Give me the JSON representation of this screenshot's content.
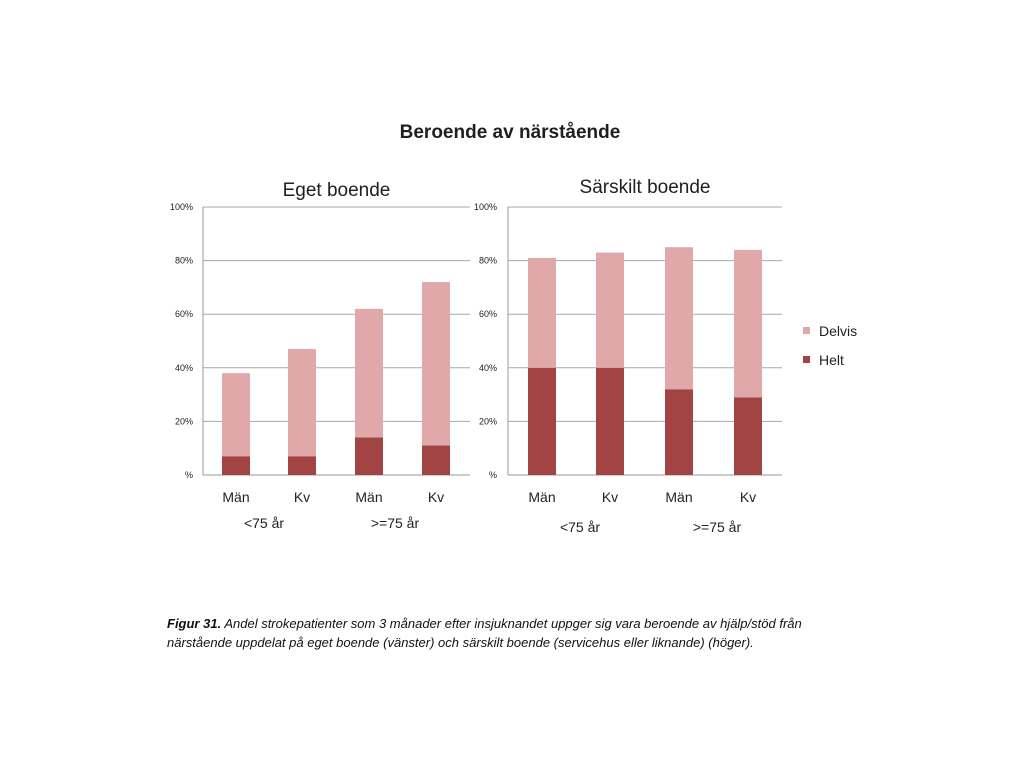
{
  "title": "Beroende av närstående",
  "legend": [
    {
      "label": "Delvis",
      "color": "#e0a8a8"
    },
    {
      "label": "Helt",
      "color": "#a34444"
    }
  ],
  "caption": {
    "label": "Figur 31.",
    "text": "Andel strokepatienter som 3 månader efter insjuknandet uppger sig vara beroende av hjälp/stöd från närstående uppdelat på eget boende (vänster) och särskilt boende (servicehus eller liknande) (höger)."
  },
  "chart_data": [
    {
      "type": "bar",
      "stacked": true,
      "title": "Eget boende",
      "categories": [
        "Män",
        "Kv",
        "Män",
        "Kv"
      ],
      "groups": [
        "<75 år",
        ">=75 år"
      ],
      "series": [
        {
          "name": "Helt",
          "values": [
            7,
            7,
            14,
            11
          ]
        },
        {
          "name": "Delvis",
          "values": [
            31,
            40,
            48,
            61
          ]
        }
      ],
      "yticks": [
        "%",
        "20%",
        "40%",
        "60%",
        "80%",
        "100%"
      ],
      "ylim": [
        0,
        100
      ],
      "grid": true
    },
    {
      "type": "bar",
      "stacked": true,
      "title": "Särskilt boende",
      "categories": [
        "Män",
        "Kv",
        "Män",
        "Kv"
      ],
      "groups": [
        "<75 år",
        ">=75 år"
      ],
      "series": [
        {
          "name": "Helt",
          "values": [
            40,
            40,
            32,
            29
          ]
        },
        {
          "name": "Delvis",
          "values": [
            41,
            43,
            53,
            55
          ]
        }
      ],
      "yticks": [
        "%",
        "20%",
        "40%",
        "60%",
        "80%",
        "100%"
      ],
      "ylim": [
        0,
        100
      ],
      "grid": true
    }
  ]
}
